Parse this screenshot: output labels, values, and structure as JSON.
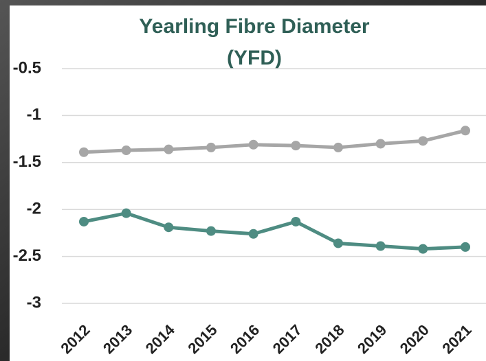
{
  "chart_data": {
    "type": "line",
    "title": [
      "Yearling Fibre Diameter",
      "(YFD)"
    ],
    "categories": [
      "2012",
      "2013",
      "2014",
      "2015",
      "2016",
      "2017",
      "2018",
      "2019",
      "2020",
      "2021"
    ],
    "series": [
      {
        "color": "#a6a6a6",
        "values": [
          -1.39,
          -1.37,
          -1.36,
          -1.34,
          -1.31,
          -1.32,
          -1.34,
          -1.3,
          -1.27,
          -1.16
        ]
      },
      {
        "color": "#4e8c82",
        "values": [
          -2.13,
          -2.04,
          -2.19,
          -2.23,
          -2.26,
          -2.13,
          -2.36,
          -2.39,
          -2.42,
          -2.4
        ]
      }
    ],
    "ylim": [
      -3,
      -0.5
    ],
    "yticks": [
      -0.5,
      -1,
      -1.5,
      -2,
      -2.5,
      -3
    ],
    "grid": true
  }
}
